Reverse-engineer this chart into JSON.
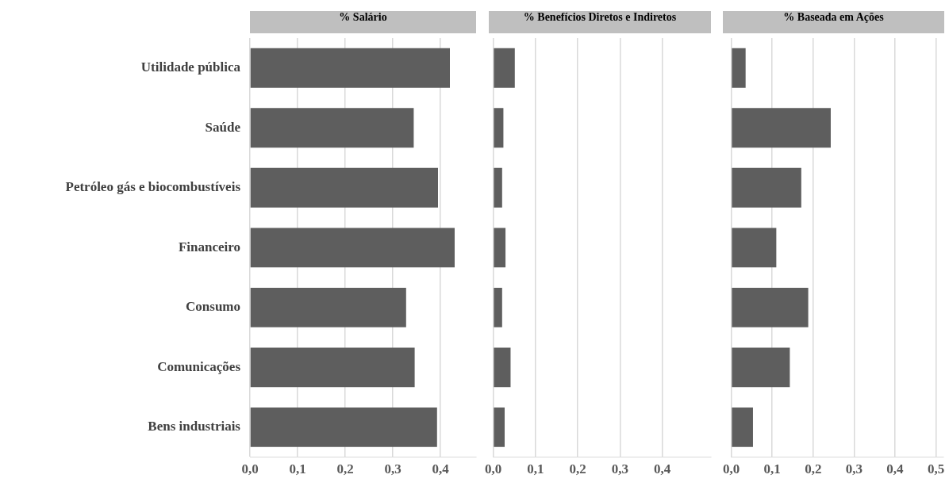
{
  "chart_data": [
    {
      "type": "bar",
      "orientation": "horizontal",
      "title": "% Salário",
      "categories": [
        "Utilidade pública",
        "Saúde",
        "Petróleo gás e biocombustíveis",
        "Financeiro",
        "Consumo",
        "Comunicações",
        "Bens industriais"
      ],
      "values": [
        0.42,
        0.344,
        0.395,
        0.43,
        0.328,
        0.346,
        0.393
      ],
      "color": "#5e5e5e",
      "xlim": [
        0,
        0.475
      ],
      "xticks": [
        {
          "value": 0,
          "label": "0,0"
        },
        {
          "value": 0.1,
          "label": "0,1"
        },
        {
          "value": 0.2,
          "label": "0,2"
        },
        {
          "value": 0.3,
          "label": "0,3"
        },
        {
          "value": 0.4,
          "label": "0,4"
        }
      ],
      "grid": "x"
    },
    {
      "type": "bar",
      "orientation": "horizontal",
      "title": "% Benefícios Diretos e Indiretos",
      "categories": [
        null,
        null,
        null,
        null,
        null,
        null,
        null
      ],
      "values": [
        0.051,
        0.024,
        0.021,
        0.029,
        0.021,
        0.041,
        0.027
      ],
      "color": "#5e5e5e",
      "xlim": [
        0,
        0.515
      ],
      "xticks": [
        {
          "value": 0,
          "label": "0,0"
        },
        {
          "value": 0.1,
          "label": "0,1"
        },
        {
          "value": 0.2,
          "label": "0,2"
        },
        {
          "value": 0.3,
          "label": "0,3"
        },
        {
          "value": 0.4,
          "label": "0,4"
        }
      ],
      "grid": "x",
      "tick_labels": "x"
    },
    {
      "type": "bar",
      "orientation": "horizontal",
      "title": "% Baseada em Ações",
      "categories": [
        null,
        null,
        null,
        null,
        null,
        null,
        null
      ],
      "values": [
        0.035,
        0.243,
        0.171,
        0.11,
        0.188,
        0.143,
        0.053
      ],
      "color": "#5e5e5e",
      "xlim": [
        0,
        0.517
      ],
      "xticks": [
        {
          "value": 0,
          "label": "0,0"
        },
        {
          "value": 0.1,
          "label": "0,1"
        },
        {
          "value": 0.2,
          "label": "0,2"
        },
        {
          "value": 0.3,
          "label": "0,3"
        },
        {
          "value": 0.4,
          "label": "0,4"
        },
        {
          "value": 0.5,
          "label": "0,5"
        }
      ],
      "grid": "x",
      "tick_labels": "x"
    }
  ]
}
